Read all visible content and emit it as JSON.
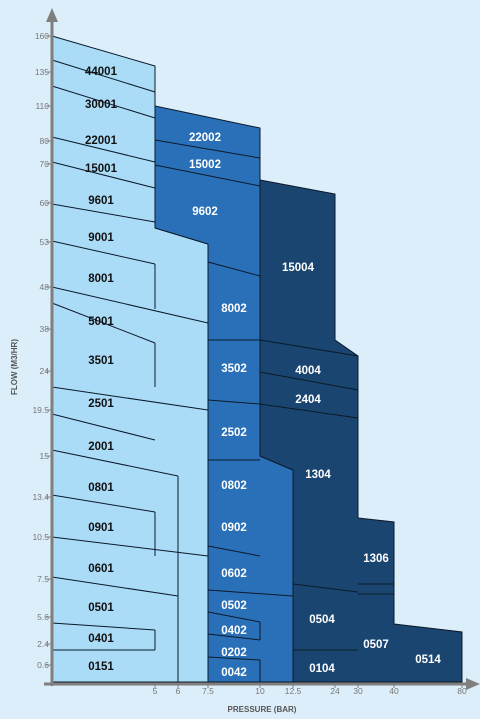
{
  "y_axis": {
    "title": "FLOW (M3/HR)",
    "ticks": [
      "160",
      "135",
      "110",
      "80",
      "70",
      "60",
      "53",
      "48",
      "38",
      "24",
      "19.5",
      "15",
      "13.4",
      "10.5",
      "7.5",
      "5.6",
      "2.4",
      "0.6"
    ]
  },
  "x_axis": {
    "title": "PRESSURE (BAR)",
    "ticks": [
      "5",
      "6",
      "7.5",
      "10",
      "12.5",
      "24",
      "30",
      "40",
      "80"
    ]
  },
  "colors": {
    "background": "#dceefa",
    "light": "#aadcf8",
    "mid": "#2a70b8",
    "dark": "#1a4570",
    "axis": "#7f7f7f"
  },
  "series": {
    "light": [
      "44001",
      "30001",
      "22001",
      "15001",
      "9601",
      "9001",
      "8001",
      "5001",
      "3501",
      "2501",
      "2001",
      "0801",
      "0901",
      "0601",
      "0501",
      "0401",
      "0151"
    ],
    "mid": [
      "22002",
      "15002",
      "9602",
      "8002",
      "3502",
      "2502",
      "0802",
      "0902",
      "0602",
      "0502",
      "0402",
      "0202",
      "0042"
    ],
    "dark": [
      "15004",
      "4004",
      "2404",
      "1304",
      "1306",
      "0504",
      "0507",
      "0104",
      "0514"
    ]
  }
}
